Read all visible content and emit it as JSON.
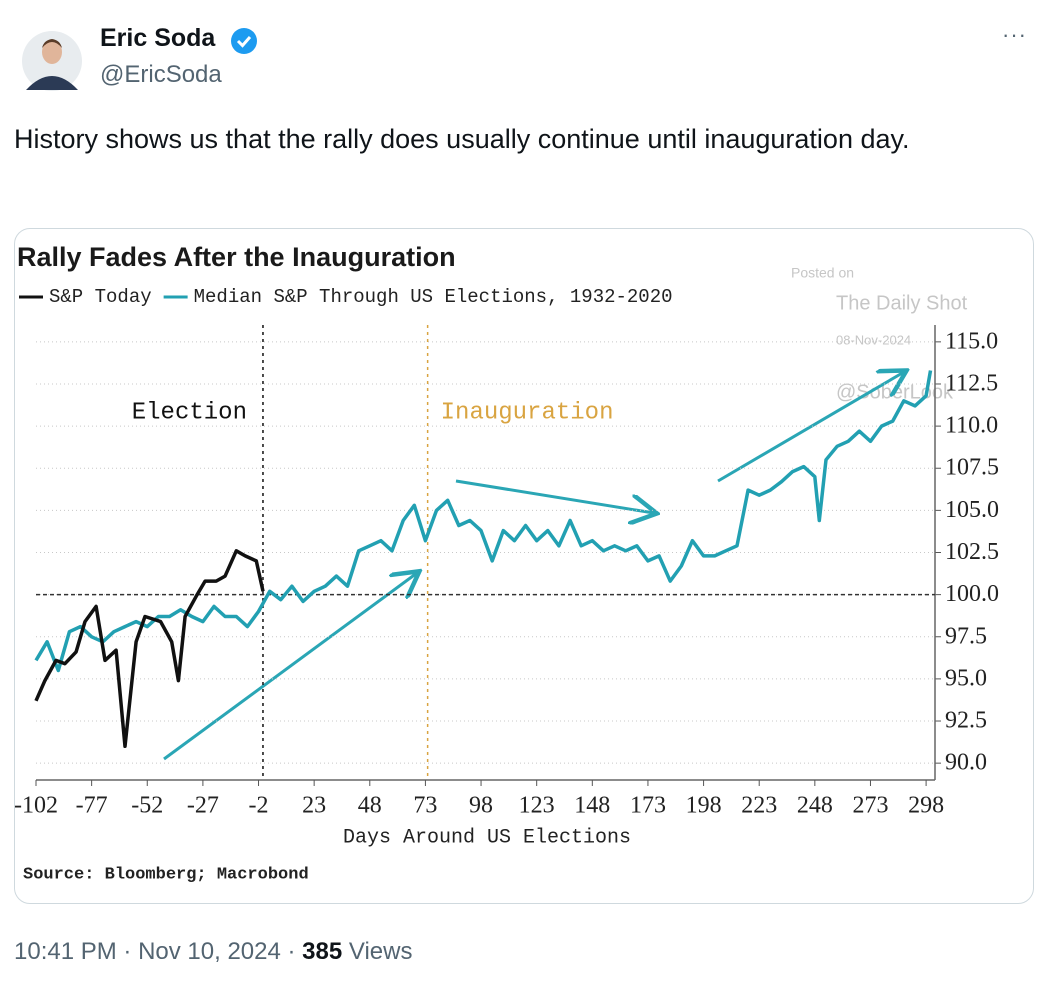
{
  "tweet": {
    "name": "Eric Soda",
    "handle": "@EricSoda",
    "text": "History shows us that the rally does usually continue until inauguration day.",
    "time": "10:41 PM",
    "date": "Nov 10, 2024",
    "views": 385,
    "views_label": "Views"
  },
  "chart_data": {
    "type": "line",
    "title": "Rally Fades After the Inauguration",
    "xlabel": "Days Around US Elections",
    "source": "Source: Bloomberg; Macrobond",
    "watermark": [
      "Posted on",
      "The Daily Shot",
      "08-Nov-2024",
      "@SoberLook"
    ],
    "annotations": [
      {
        "text": "Election",
        "x": 0,
        "color": "#111111"
      },
      {
        "text": "Inauguration",
        "x": 74,
        "color": "#d9a441"
      }
    ],
    "hline": 100,
    "series": [
      {
        "name": "S&P Today",
        "color": "#111111",
        "x": [
          -102,
          -98,
          -93,
          -89,
          -84,
          -80,
          -75,
          -71,
          -66,
          -62,
          -57,
          -53,
          -46,
          -41,
          -38,
          -35,
          -30,
          -26,
          -21,
          -17,
          -12,
          -8,
          -3,
          0
        ],
        "values": [
          93.7,
          94.9,
          96.1,
          95.9,
          96.6,
          98.4,
          99.3,
          96.1,
          96.7,
          91.0,
          97.2,
          98.7,
          98.4,
          97.2,
          94.9,
          98.7,
          99.9,
          100.8,
          100.8,
          101.1,
          102.6,
          102.3,
          102.0,
          100.2
        ]
      },
      {
        "name": "Median S&P Through US Elections, 1932-2020",
        "color": "#22a0b2",
        "x": [
          -102,
          -97,
          -92,
          -87,
          -82,
          -77,
          -72,
          -67,
          -62,
          -57,
          -52,
          -47,
          -42,
          -37,
          -32,
          -27,
          -22,
          -17,
          -12,
          -7,
          -2,
          3,
          8,
          13,
          18,
          23,
          28,
          33,
          38,
          43,
          48,
          53,
          58,
          63,
          68,
          73,
          78,
          83,
          88,
          93,
          98,
          103,
          108,
          113,
          118,
          123,
          128,
          133,
          138,
          143,
          148,
          153,
          158,
          163,
          168,
          173,
          178,
          183,
          188,
          193,
          198,
          203,
          208,
          213,
          218,
          223,
          228,
          233,
          238,
          243,
          248,
          250,
          253,
          258,
          263,
          268,
          273,
          278,
          283,
          288,
          293,
          298,
          300
        ],
        "values": [
          96.1,
          97.2,
          95.5,
          97.8,
          98.1,
          97.5,
          97.2,
          97.8,
          98.1,
          98.4,
          98.1,
          98.7,
          98.7,
          99.1,
          98.7,
          98.4,
          99.3,
          98.7,
          98.7,
          98.1,
          99.0,
          100.2,
          99.7,
          100.5,
          99.6,
          100.2,
          100.5,
          101.1,
          100.5,
          102.6,
          102.9,
          103.2,
          102.6,
          104.4,
          105.3,
          103.2,
          105.0,
          105.6,
          104.1,
          104.4,
          103.8,
          102.0,
          103.8,
          103.2,
          104.1,
          103.2,
          103.8,
          102.9,
          104.4,
          102.9,
          103.2,
          102.6,
          102.9,
          102.6,
          102.9,
          102.0,
          102.3,
          100.8,
          101.7,
          103.2,
          102.3,
          102.3,
          102.6,
          102.9,
          106.2,
          105.9,
          106.2,
          106.7,
          107.3,
          107.6,
          107.0,
          104.4,
          108.0,
          108.8,
          109.1,
          109.7,
          109.1,
          110.0,
          110.3,
          111.5,
          111.2,
          111.8,
          113.3
        ]
      }
    ],
    "xlim": [
      -102,
      302
    ],
    "ylim": [
      89,
      116
    ],
    "xticks": [
      -102,
      -77,
      -52,
      -27,
      -2,
      23,
      48,
      73,
      98,
      123,
      148,
      173,
      198,
      223,
      248,
      273,
      298
    ],
    "yticks": [
      {
        "value": 90,
        "label": "90.0"
      },
      92.5,
      {
        "value": 95,
        "label": "95.0"
      },
      97.5,
      {
        "value": 100,
        "label": "100.0"
      },
      102.5,
      {
        "value": 105,
        "label": "105.0"
      },
      107.5,
      {
        "value": 110,
        "label": "110.0"
      },
      112.5,
      {
        "value": 115,
        "label": "115.0"
      }
    ],
    "grid": true
  }
}
